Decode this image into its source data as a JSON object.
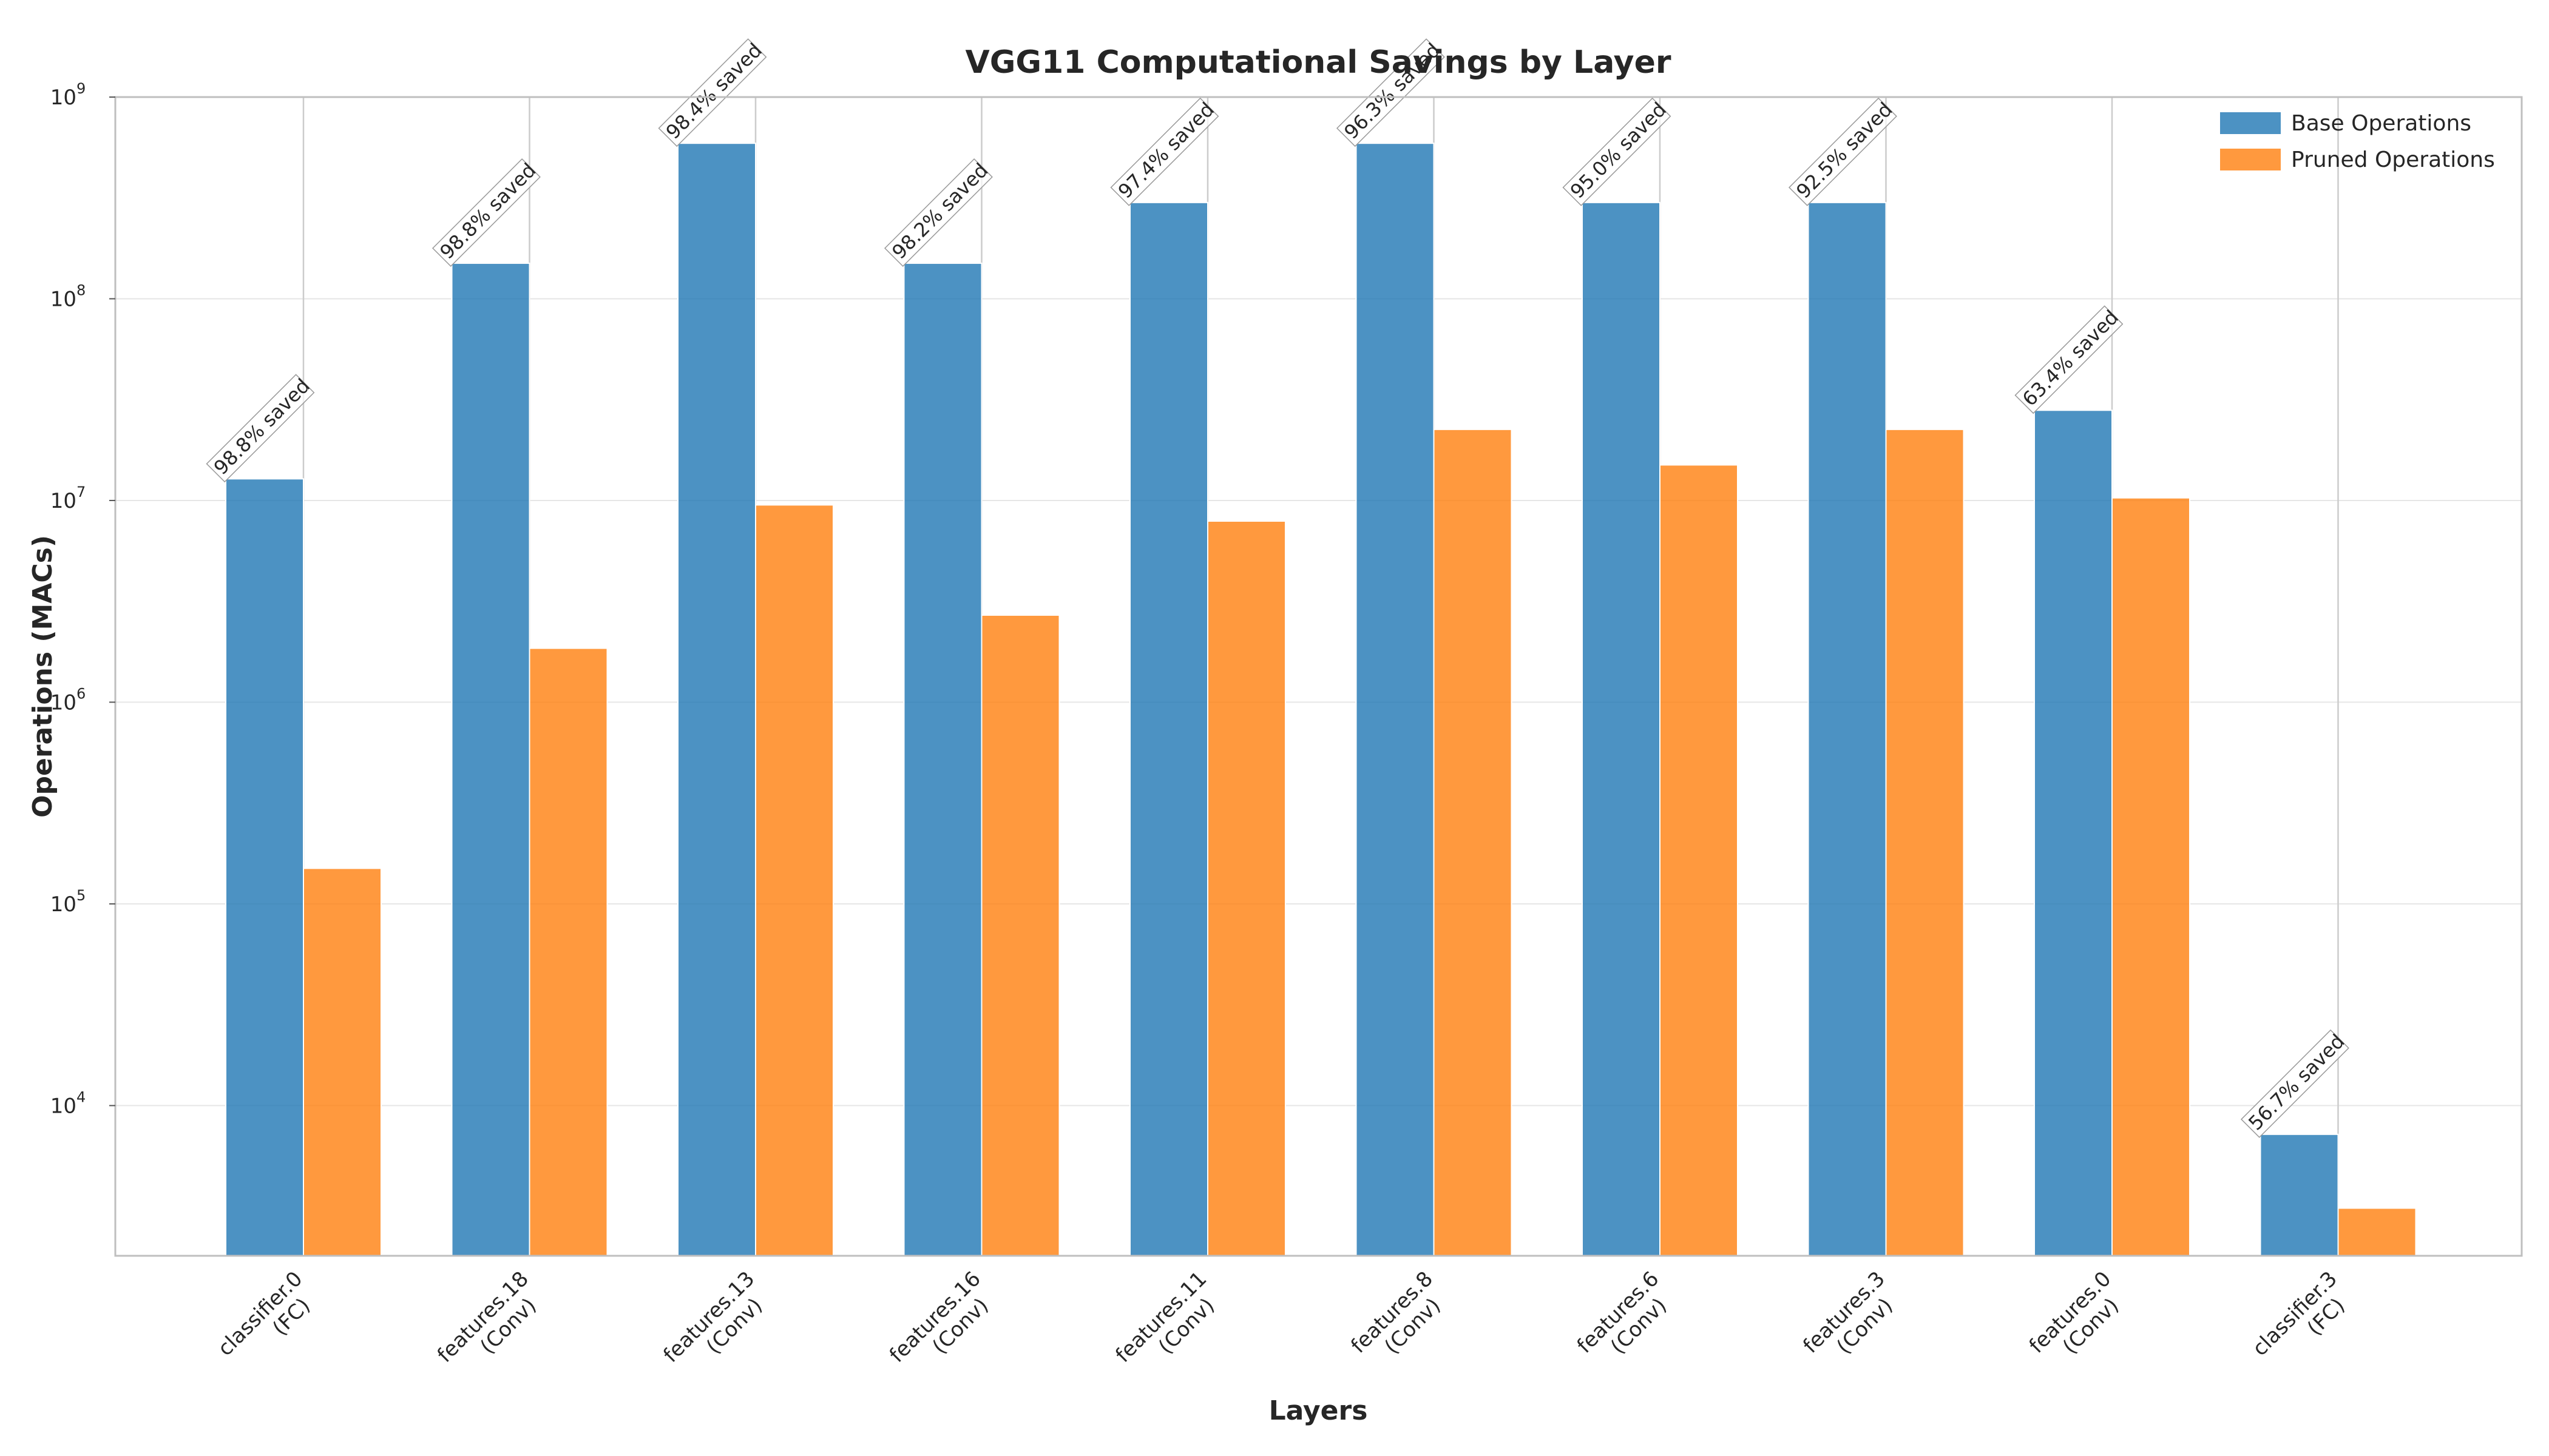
{
  "chart_data": {
    "type": "bar",
    "title": "VGG11 Computational Savings by Layer",
    "xlabel": "Layers",
    "ylabel": "Operations (MACs)",
    "yscale": "log",
    "ylim": [
      1800,
      1000000000
    ],
    "yticks": [
      {
        "base": "10",
        "exp": "4",
        "value": 10000
      },
      {
        "base": "10",
        "exp": "5",
        "value": 100000
      },
      {
        "base": "10",
        "exp": "6",
        "value": 1000000
      },
      {
        "base": "10",
        "exp": "7",
        "value": 10000000
      },
      {
        "base": "10",
        "exp": "8",
        "value": 100000000
      },
      {
        "base": "10",
        "exp": "9",
        "value": 1000000000
      }
    ],
    "categories": [
      {
        "line1": "classifier.0",
        "line2": "(FC)"
      },
      {
        "line1": "features.18",
        "line2": "(Conv)"
      },
      {
        "line1": "features.13",
        "line2": "(Conv)"
      },
      {
        "line1": "features.16",
        "line2": "(Conv)"
      },
      {
        "line1": "features.11",
        "line2": "(Conv)"
      },
      {
        "line1": "features.8",
        "line2": "(Conv)"
      },
      {
        "line1": "features.6",
        "line2": "(Conv)"
      },
      {
        "line1": "features.3",
        "line2": "(Conv)"
      },
      {
        "line1": "features.0",
        "line2": "(Conv)"
      },
      {
        "line1": "classifier.3",
        "line2": "(FC)"
      }
    ],
    "series": [
      {
        "name": "Base Operations",
        "color": "#1f77b4",
        "values": [
          12800000,
          150000000,
          590000000,
          150000000,
          300000000,
          590000000,
          300000000,
          300000000,
          28000000,
          7200
        ]
      },
      {
        "name": "Pruned Operations",
        "color": "#ff7f0e",
        "values": [
          150000,
          1850000,
          9500000,
          2700000,
          7900000,
          22500000,
          15000000,
          22500000,
          10300000,
          3100
        ]
      }
    ],
    "annotations": [
      "98.8% saved",
      "98.8% saved",
      "98.4% saved",
      "98.2% saved",
      "97.4% saved",
      "96.3% saved",
      "95.0% saved",
      "92.5% saved",
      "63.4% saved",
      "56.7% saved"
    ],
    "legend_position": "top-right",
    "grid": true
  }
}
